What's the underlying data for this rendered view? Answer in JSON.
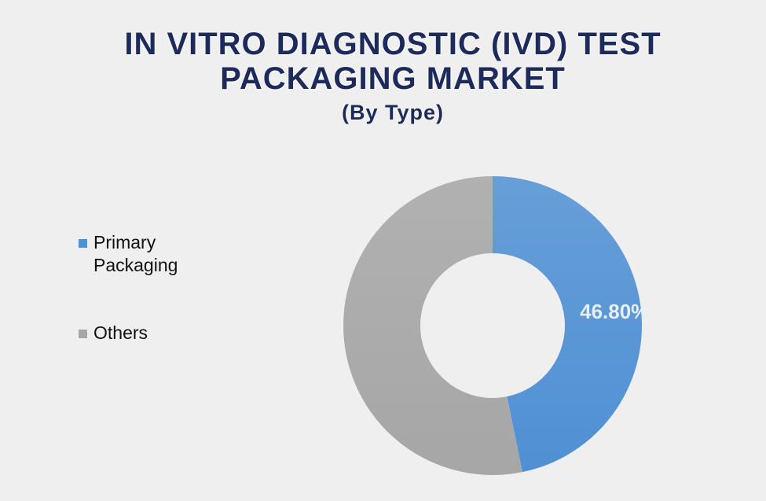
{
  "chart_data": {
    "type": "donut",
    "title": "IN VITRO DIAGNOSTIC (IVD) TEST PACKAGING MARKET",
    "subtitle": "(By Type)",
    "categories": [
      "Primary Packaging",
      "Others"
    ],
    "values": [
      46.8,
      53.2
    ],
    "value_labels": [
      "46.80%",
      null
    ],
    "colors": [
      "#4f90d4",
      "#a6a6a6"
    ],
    "legend": "left"
  }
}
